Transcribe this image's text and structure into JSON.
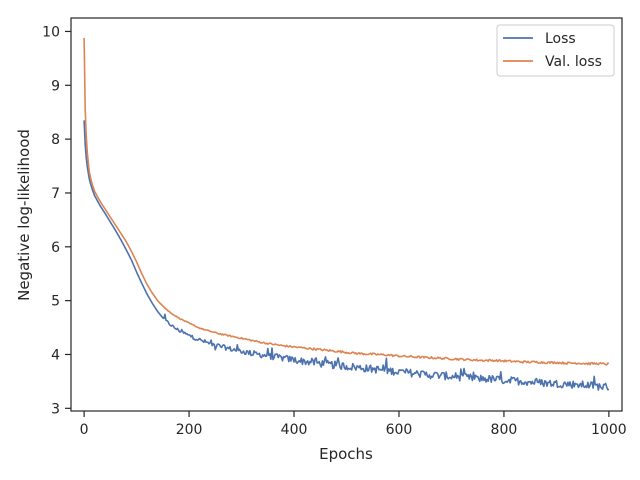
{
  "chart_data": {
    "type": "line",
    "title": "",
    "xlabel": "Epochs",
    "ylabel": "Negative log-likelihood",
    "xlim": [
      -25,
      1025
    ],
    "ylim": [
      2.95,
      10.25
    ],
    "x_ticks": [
      0,
      200,
      400,
      600,
      800,
      1000
    ],
    "y_ticks": [
      3,
      4,
      5,
      6,
      7,
      8,
      9,
      10
    ],
    "grid": false,
    "legend": "top-right",
    "x_epochs": [
      0,
      2,
      5,
      10,
      15,
      20,
      30,
      40,
      50,
      60,
      70,
      80,
      90,
      100,
      110,
      120,
      130,
      140,
      150,
      160,
      170,
      180,
      190,
      200,
      220,
      240,
      260,
      280,
      300,
      320,
      340,
      360,
      380,
      400,
      420,
      440,
      460,
      480,
      500,
      520,
      540,
      560,
      580,
      600,
      620,
      640,
      660,
      680,
      700,
      720,
      740,
      760,
      780,
      800,
      820,
      840,
      860,
      880,
      900,
      920,
      940,
      960,
      980,
      1000
    ],
    "series": [
      {
        "name": "Loss",
        "color": "#4c72b0",
        "values": [
          8.35,
          7.9,
          7.55,
          7.25,
          7.08,
          6.95,
          6.77,
          6.62,
          6.46,
          6.3,
          6.13,
          5.95,
          5.76,
          5.53,
          5.32,
          5.12,
          4.95,
          4.8,
          4.68,
          4.59,
          4.51,
          4.45,
          4.4,
          4.35,
          4.27,
          4.2,
          4.15,
          4.1,
          4.06,
          4.02,
          3.99,
          3.96,
          3.93,
          3.9,
          3.87,
          3.85,
          3.82,
          3.8,
          3.78,
          3.76,
          3.74,
          3.72,
          3.7,
          3.68,
          3.66,
          3.64,
          3.62,
          3.61,
          3.59,
          3.58,
          3.56,
          3.55,
          3.54,
          3.52,
          3.51,
          3.5,
          3.48,
          3.47,
          3.46,
          3.45,
          3.44,
          3.43,
          3.41,
          3.4
        ]
      },
      {
        "name": "Val. loss",
        "color": "#dd8452",
        "values": [
          9.88,
          8.55,
          7.85,
          7.38,
          7.17,
          7.03,
          6.85,
          6.7,
          6.55,
          6.4,
          6.25,
          6.1,
          5.92,
          5.72,
          5.5,
          5.3,
          5.14,
          5.0,
          4.9,
          4.81,
          4.74,
          4.68,
          4.63,
          4.58,
          4.49,
          4.43,
          4.38,
          4.34,
          4.3,
          4.26,
          4.22,
          4.19,
          4.16,
          4.14,
          4.12,
          4.1,
          4.08,
          4.06,
          4.04,
          4.02,
          4.01,
          4.0,
          3.99,
          3.97,
          3.96,
          3.95,
          3.94,
          3.93,
          3.92,
          3.91,
          3.9,
          3.89,
          3.89,
          3.88,
          3.87,
          3.86,
          3.86,
          3.85,
          3.85,
          3.84,
          3.84,
          3.83,
          3.83,
          3.82
        ]
      }
    ]
  }
}
